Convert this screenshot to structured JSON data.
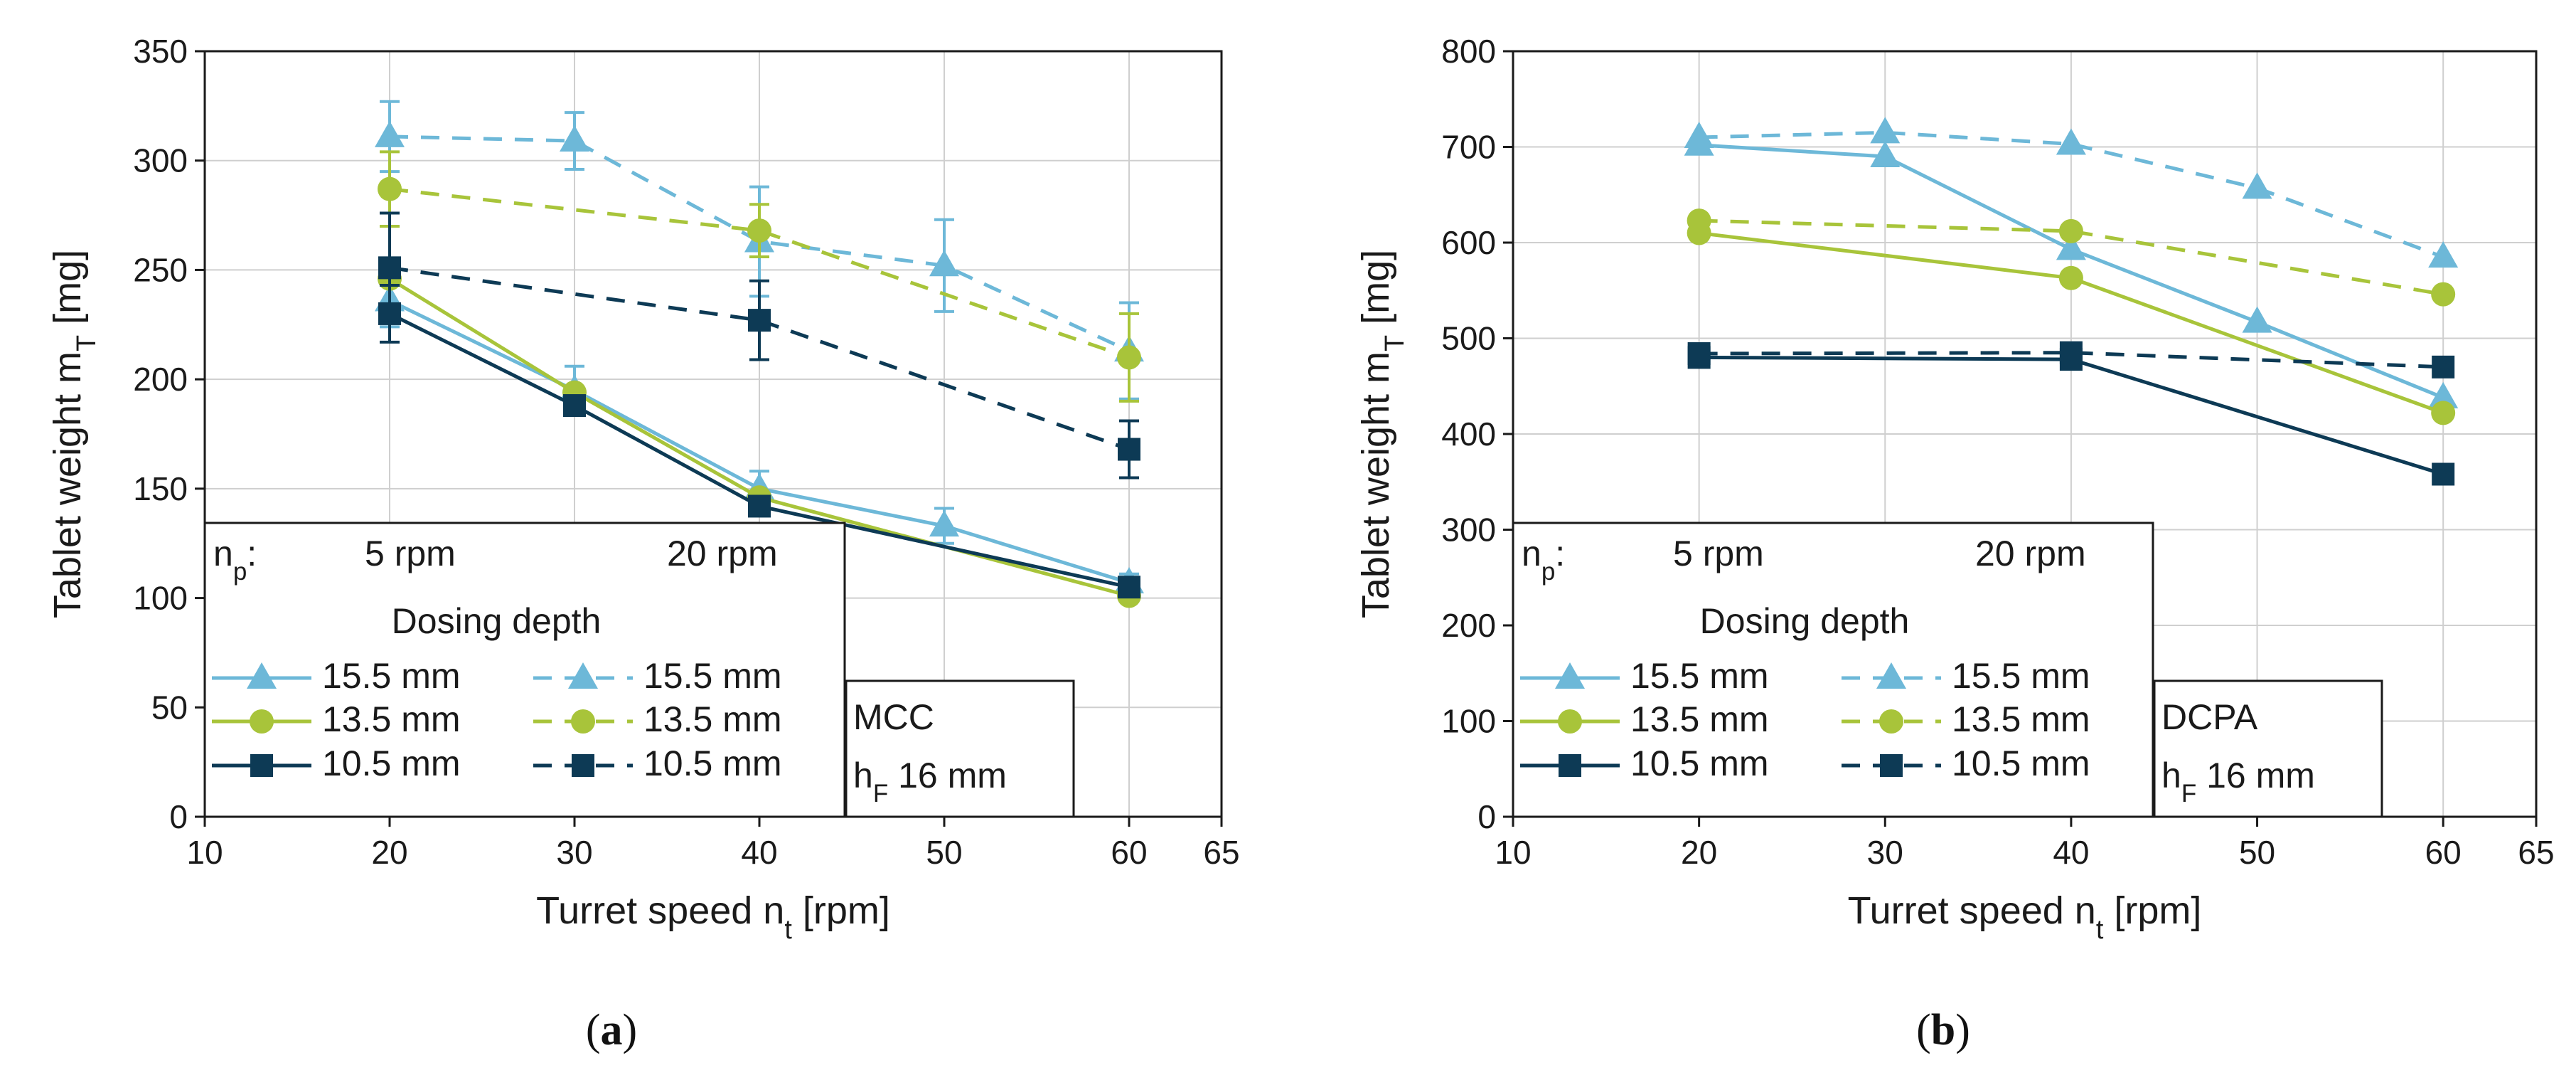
{
  "colors": {
    "c155": "#6db8d8",
    "c135": "#a8c43a",
    "c105": "#0d3a55",
    "grid": "#cfcfcf",
    "axis": "#1a1a1a"
  },
  "legend": {
    "np_label": "n",
    "np_sub": "p",
    "np_colon": ":",
    "col1": "5 rpm",
    "col2": "20 rpm",
    "dosing_title": "Dosing depth",
    "rows": [
      "15.5 mm",
      "13.5 mm",
      "10.5 mm"
    ],
    "hf_label": "h",
    "hf_sub": "F",
    "hf_value": " 16 mm"
  },
  "chart_data": [
    {
      "type": "line",
      "panel": "(a)",
      "caption_open": "(",
      "caption_letter": "a",
      "caption_close": ")",
      "material": "MCC",
      "xlabel": "Turret speed n",
      "xlabel_sub": "t",
      "xlabel_unit": " [rpm]",
      "ylabel": "Tablet weight m",
      "ylabel_sub": "T",
      "ylabel_unit": " [mg]",
      "xlim": [
        10,
        65
      ],
      "ylim": [
        0,
        350
      ],
      "xticks": [
        10,
        20,
        30,
        40,
        50,
        60,
        65
      ],
      "yticks": [
        0,
        50,
        100,
        150,
        200,
        250,
        300,
        350
      ],
      "series": [
        {
          "name": "15.5 mm",
          "np": "5 rpm",
          "x": [
            20,
            30,
            40,
            50,
            60
          ],
          "y": [
            236,
            195,
            150,
            133,
            107
          ],
          "err": [
            12,
            11,
            8,
            8,
            4
          ]
        },
        {
          "name": "13.5 mm",
          "np": "5 rpm",
          "x": [
            20,
            30,
            40,
            60
          ],
          "y": [
            246,
            194,
            146,
            101
          ],
          "err": [
            0,
            0,
            0,
            0
          ]
        },
        {
          "name": "10.5 mm",
          "np": "5 rpm",
          "x": [
            20,
            30,
            40,
            60
          ],
          "y": [
            230,
            188,
            142,
            105
          ],
          "err": [
            13,
            0,
            0,
            0
          ]
        },
        {
          "name": "15.5 mm",
          "np": "20 rpm",
          "x": [
            20,
            30,
            40,
            50,
            60
          ],
          "y": [
            311,
            309,
            263,
            252,
            213
          ],
          "err": [
            16,
            13,
            25,
            21,
            22
          ]
        },
        {
          "name": "13.5 mm",
          "np": "20 rpm",
          "x": [
            20,
            40,
            60
          ],
          "y": [
            287,
            268,
            210
          ],
          "err": [
            17,
            12,
            20
          ]
        },
        {
          "name": "10.5 mm",
          "np": "20 rpm",
          "x": [
            20,
            40,
            60
          ],
          "y": [
            251,
            227,
            168
          ],
          "err": [
            25,
            18,
            13
          ]
        }
      ]
    },
    {
      "type": "line",
      "panel": "(b)",
      "caption_open": "(",
      "caption_letter": "b",
      "caption_close": ")",
      "material": "DCPA",
      "xlabel": "Turret speed n",
      "xlabel_sub": "t",
      "xlabel_unit": " [rpm]",
      "ylabel": "Tablet weight m",
      "ylabel_sub": "T",
      "ylabel_unit": " [mg]",
      "xlim": [
        10,
        65
      ],
      "ylim": [
        0,
        800
      ],
      "xticks": [
        10,
        20,
        30,
        40,
        50,
        60,
        65
      ],
      "yticks": [
        0,
        100,
        200,
        300,
        400,
        500,
        600,
        700,
        800
      ],
      "series": [
        {
          "name": "15.5 mm",
          "np": "5 rpm",
          "x": [
            20,
            30,
            40,
            50,
            60
          ],
          "y": [
            702,
            690,
            593,
            517,
            438
          ],
          "err": [
            0,
            0,
            0,
            0,
            0
          ]
        },
        {
          "name": "13.5 mm",
          "np": "5 rpm",
          "x": [
            20,
            40,
            60
          ],
          "y": [
            610,
            563,
            422
          ],
          "err": [
            0,
            0,
            0
          ]
        },
        {
          "name": "10.5 mm",
          "np": "5 rpm",
          "x": [
            20,
            40,
            60
          ],
          "y": [
            480,
            478,
            358
          ],
          "err": [
            0,
            0,
            0
          ]
        },
        {
          "name": "15.5 mm",
          "np": "20 rpm",
          "x": [
            20,
            30,
            40,
            50,
            60
          ],
          "y": [
            710,
            715,
            703,
            657,
            585
          ],
          "err": [
            0,
            0,
            0,
            0,
            0
          ]
        },
        {
          "name": "13.5 mm",
          "np": "20 rpm",
          "x": [
            20,
            40,
            60
          ],
          "y": [
            623,
            612,
            546
          ],
          "err": [
            0,
            0,
            0
          ]
        },
        {
          "name": "10.5 mm",
          "np": "20 rpm",
          "x": [
            20,
            40,
            60
          ],
          "y": [
            484,
            485,
            470
          ],
          "err": [
            0,
            0,
            0
          ]
        }
      ]
    }
  ]
}
